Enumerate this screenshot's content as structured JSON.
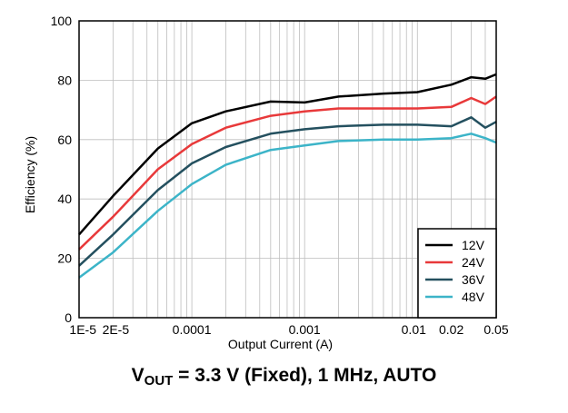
{
  "chart_data": {
    "type": "line",
    "xlabel": "Output Current (A)",
    "ylabel": "Efficiency (%)",
    "x_scale": "log",
    "xlim": [
      1e-05,
      0.05
    ],
    "ylim": [
      0,
      100
    ],
    "grid": true,
    "legend_position": "bottom-right",
    "x_ticks": [
      {
        "value": 1e-05,
        "label": "1E-5"
      },
      {
        "value": 2e-05,
        "label": "2E-5"
      },
      {
        "value": 0.0001,
        "label": "0.0001"
      },
      {
        "value": 0.001,
        "label": "0.001"
      },
      {
        "value": 0.01,
        "label": "0.01"
      },
      {
        "value": 0.02,
        "label": "0.02"
      },
      {
        "value": 0.05,
        "label": "0.05"
      }
    ],
    "y_ticks": [
      {
        "value": 0,
        "label": "0"
      },
      {
        "value": 20,
        "label": "20"
      },
      {
        "value": 40,
        "label": "40"
      },
      {
        "value": 60,
        "label": "60"
      },
      {
        "value": 80,
        "label": "80"
      },
      {
        "value": 100,
        "label": "100"
      }
    ],
    "series": [
      {
        "name": "12V",
        "color": "#000000",
        "x": [
          1e-05,
          2e-05,
          5e-05,
          0.0001,
          0.0002,
          0.0005,
          0.001,
          0.002,
          0.005,
          0.01,
          0.02,
          0.03,
          0.04,
          0.05
        ],
        "y": [
          28,
          41,
          57,
          65.5,
          69.5,
          72.8,
          72.5,
          74.5,
          75.5,
          76,
          78.5,
          81,
          80.5,
          82
        ]
      },
      {
        "name": "24V",
        "color": "#e8393a",
        "x": [
          1e-05,
          2e-05,
          5e-05,
          0.0001,
          0.0002,
          0.0005,
          0.001,
          0.002,
          0.005,
          0.01,
          0.02,
          0.03,
          0.04,
          0.05
        ],
        "y": [
          23,
          34,
          50,
          58.5,
          64,
          68,
          69.5,
          70.5,
          70.5,
          70.5,
          71,
          74,
          72,
          74.5
        ]
      },
      {
        "name": "36V",
        "color": "#24505f",
        "x": [
          1e-05,
          2e-05,
          5e-05,
          0.0001,
          0.0002,
          0.0005,
          0.001,
          0.002,
          0.005,
          0.01,
          0.02,
          0.03,
          0.04,
          0.05
        ],
        "y": [
          17.5,
          28,
          43,
          52,
          57.5,
          62,
          63.5,
          64.5,
          65,
          65,
          64.5,
          67.5,
          64,
          66
        ]
      },
      {
        "name": "48V",
        "color": "#3cb4c8",
        "x": [
          1e-05,
          2e-05,
          5e-05,
          0.0001,
          0.0002,
          0.0005,
          0.001,
          0.002,
          0.005,
          0.01,
          0.02,
          0.03,
          0.04,
          0.05
        ],
        "y": [
          13.5,
          22,
          36,
          45,
          51.5,
          56.5,
          58,
          59.5,
          60,
          60,
          60.5,
          62,
          60.5,
          59
        ]
      }
    ],
    "caption": {
      "main": "V",
      "sub": "OUT",
      "rest": " = 3.3 V (Fixed), 1 MHz, AUTO"
    }
  }
}
